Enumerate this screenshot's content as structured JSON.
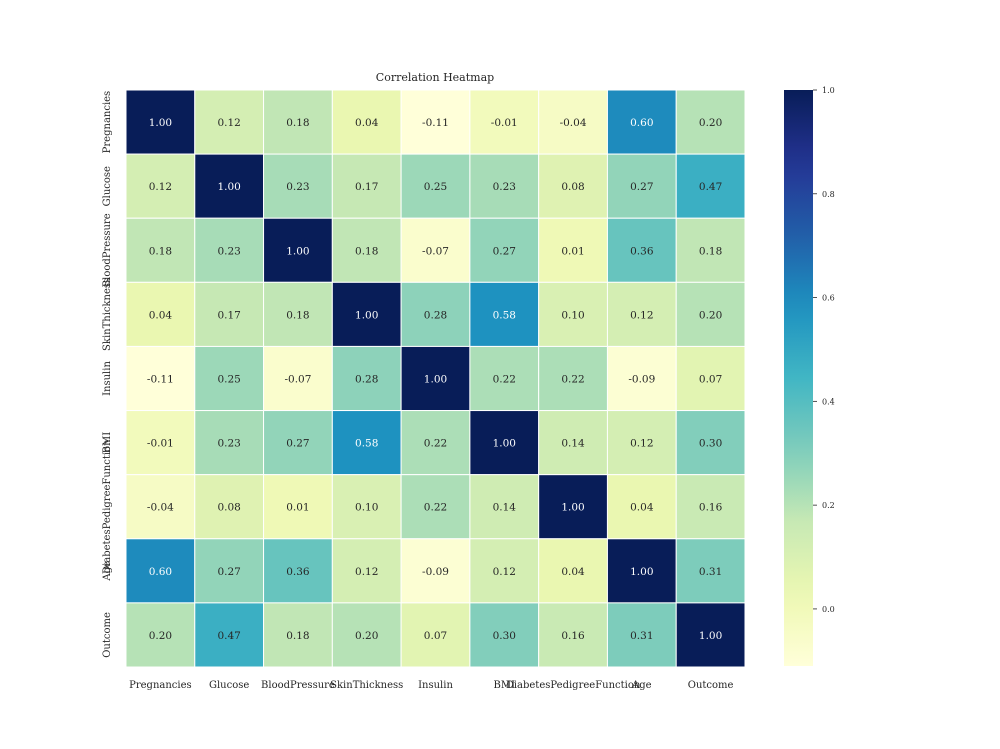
{
  "chart_data": {
    "type": "heatmap",
    "title": "Correlation Heatmap",
    "variables": [
      "Pregnancies",
      "Glucose",
      "BloodPressure",
      "SkinThickness",
      "Insulin",
      "BMI",
      "DiabetesPedigreeFunction",
      "Age",
      "Outcome"
    ],
    "matrix": [
      [
        1.0,
        0.12,
        0.18,
        0.04,
        -0.11,
        -0.01,
        -0.04,
        0.6,
        0.2
      ],
      [
        0.12,
        1.0,
        0.23,
        0.17,
        0.25,
        0.23,
        0.08,
        0.27,
        0.47
      ],
      [
        0.18,
        0.23,
        1.0,
        0.18,
        -0.07,
        0.27,
        0.01,
        0.36,
        0.18
      ],
      [
        0.04,
        0.17,
        0.18,
        1.0,
        0.28,
        0.58,
        0.1,
        0.12,
        0.2
      ],
      [
        -0.11,
        0.25,
        -0.07,
        0.28,
        1.0,
        0.22,
        0.22,
        -0.09,
        0.07
      ],
      [
        -0.01,
        0.23,
        0.27,
        0.58,
        0.22,
        1.0,
        0.14,
        0.12,
        0.3
      ],
      [
        -0.04,
        0.08,
        0.01,
        0.1,
        0.22,
        0.14,
        1.0,
        0.04,
        0.16
      ],
      [
        0.6,
        0.27,
        0.36,
        0.12,
        -0.09,
        0.12,
        0.04,
        1.0,
        0.31
      ],
      [
        0.2,
        0.47,
        0.18,
        0.2,
        0.07,
        0.3,
        0.16,
        0.31,
        1.0
      ]
    ],
    "colormap": "YlGnBu",
    "vmin": -0.11,
    "vmax": 1.0,
    "colorbar_ticks": [
      "0.0",
      "0.2",
      "0.4",
      "0.6",
      "0.8",
      "1.0"
    ],
    "colorbar_tick_values": [
      0.0,
      0.2,
      0.4,
      0.6,
      0.8,
      1.0
    ],
    "annotation_format": "2 decimals"
  }
}
